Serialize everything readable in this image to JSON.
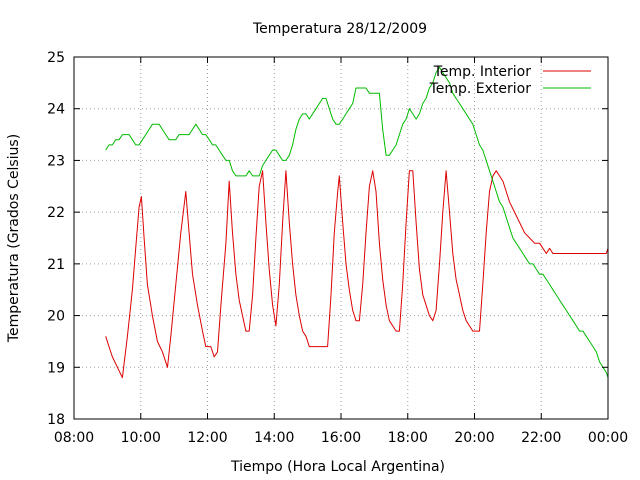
{
  "chart_data": {
    "type": "line",
    "title": "Temperatura 28/12/2009",
    "xlabel": "Tiempo (Hora Local Argentina)",
    "ylabel": "Temperatura (Grados Celsius)",
    "x_unit": "hours",
    "xlim": [
      8,
      24
    ],
    "ylim": [
      18,
      25
    ],
    "x_ticks": [
      {
        "value": 8,
        "label": "08:00"
      },
      {
        "value": 10,
        "label": "10:00"
      },
      {
        "value": 12,
        "label": "12:00"
      },
      {
        "value": 14,
        "label": "14:00"
      },
      {
        "value": 16,
        "label": "16:00"
      },
      {
        "value": 18,
        "label": "18:00"
      },
      {
        "value": 20,
        "label": "20:00"
      },
      {
        "value": 22,
        "label": "22:00"
      },
      {
        "value": 24,
        "label": "00:00"
      }
    ],
    "y_ticks": [
      {
        "value": 18,
        "label": "18"
      },
      {
        "value": 19,
        "label": "19"
      },
      {
        "value": 20,
        "label": "20"
      },
      {
        "value": 21,
        "label": "21"
      },
      {
        "value": 22,
        "label": "22"
      },
      {
        "value": 23,
        "label": "23"
      },
      {
        "value": 24,
        "label": "24"
      },
      {
        "value": 25,
        "label": "25"
      }
    ],
    "grid": true,
    "legend_position": "top-right",
    "series": [
      {
        "name": "Temp. Interior",
        "color": "#dd0000",
        "points": [
          [
            8.95,
            19.6
          ],
          [
            9.05,
            19.4
          ],
          [
            9.15,
            19.2
          ],
          [
            9.3,
            19.0
          ],
          [
            9.45,
            18.8
          ],
          [
            9.6,
            19.6
          ],
          [
            9.75,
            20.5
          ],
          [
            9.85,
            21.3
          ],
          [
            9.95,
            22.1
          ],
          [
            10.02,
            22.3
          ],
          [
            10.1,
            21.5
          ],
          [
            10.2,
            20.6
          ],
          [
            10.35,
            20.0
          ],
          [
            10.5,
            19.5
          ],
          [
            10.65,
            19.3
          ],
          [
            10.8,
            19.0
          ],
          [
            10.9,
            19.6
          ],
          [
            11.05,
            20.6
          ],
          [
            11.2,
            21.6
          ],
          [
            11.35,
            22.4
          ],
          [
            11.45,
            21.6
          ],
          [
            11.55,
            20.8
          ],
          [
            11.7,
            20.2
          ],
          [
            11.85,
            19.7
          ],
          [
            11.95,
            19.4
          ],
          [
            12.1,
            19.4
          ],
          [
            12.2,
            19.2
          ],
          [
            12.3,
            19.3
          ],
          [
            12.4,
            20.2
          ],
          [
            12.55,
            21.4
          ],
          [
            12.65,
            22.6
          ],
          [
            12.75,
            21.6
          ],
          [
            12.85,
            20.8
          ],
          [
            12.95,
            20.3
          ],
          [
            13.05,
            20.0
          ],
          [
            13.15,
            19.7
          ],
          [
            13.25,
            19.7
          ],
          [
            13.35,
            20.4
          ],
          [
            13.45,
            21.5
          ],
          [
            13.55,
            22.5
          ],
          [
            13.65,
            22.8
          ],
          [
            13.75,
            21.8
          ],
          [
            13.85,
            20.9
          ],
          [
            13.95,
            20.2
          ],
          [
            14.05,
            19.8
          ],
          [
            14.15,
            20.6
          ],
          [
            14.25,
            21.8
          ],
          [
            14.35,
            22.8
          ],
          [
            14.45,
            21.8
          ],
          [
            14.55,
            21.0
          ],
          [
            14.65,
            20.4
          ],
          [
            14.75,
            20.0
          ],
          [
            14.85,
            19.7
          ],
          [
            14.95,
            19.6
          ],
          [
            15.05,
            19.4
          ],
          [
            15.2,
            19.4
          ],
          [
            15.4,
            19.4
          ],
          [
            15.6,
            19.4
          ],
          [
            15.7,
            20.4
          ],
          [
            15.8,
            21.6
          ],
          [
            15.9,
            22.4
          ],
          [
            15.95,
            22.7
          ],
          [
            16.05,
            21.8
          ],
          [
            16.15,
            21.0
          ],
          [
            16.25,
            20.5
          ],
          [
            16.35,
            20.1
          ],
          [
            16.45,
            19.9
          ],
          [
            16.55,
            19.9
          ],
          [
            16.65,
            20.6
          ],
          [
            16.75,
            21.6
          ],
          [
            16.85,
            22.5
          ],
          [
            16.95,
            22.8
          ],
          [
            17.05,
            22.4
          ],
          [
            17.15,
            21.4
          ],
          [
            17.25,
            20.7
          ],
          [
            17.35,
            20.2
          ],
          [
            17.45,
            19.9
          ],
          [
            17.55,
            19.8
          ],
          [
            17.65,
            19.7
          ],
          [
            17.75,
            19.7
          ],
          [
            17.85,
            20.6
          ],
          [
            17.95,
            21.8
          ],
          [
            18.05,
            22.8
          ],
          [
            18.15,
            22.8
          ],
          [
            18.25,
            21.8
          ],
          [
            18.35,
            20.9
          ],
          [
            18.45,
            20.4
          ],
          [
            18.55,
            20.2
          ],
          [
            18.65,
            20.0
          ],
          [
            18.75,
            19.9
          ],
          [
            18.85,
            20.1
          ],
          [
            18.95,
            21.0
          ],
          [
            19.05,
            22.0
          ],
          [
            19.15,
            22.8
          ],
          [
            19.25,
            22.0
          ],
          [
            19.35,
            21.2
          ],
          [
            19.45,
            20.7
          ],
          [
            19.55,
            20.4
          ],
          [
            19.65,
            20.1
          ],
          [
            19.75,
            19.9
          ],
          [
            19.85,
            19.8
          ],
          [
            19.95,
            19.7
          ],
          [
            20.05,
            19.7
          ],
          [
            20.15,
            19.7
          ],
          [
            20.25,
            20.6
          ],
          [
            20.35,
            21.6
          ],
          [
            20.45,
            22.4
          ],
          [
            20.55,
            22.7
          ],
          [
            20.65,
            22.8
          ],
          [
            20.75,
            22.7
          ],
          [
            20.85,
            22.6
          ],
          [
            20.95,
            22.4
          ],
          [
            21.05,
            22.2
          ],
          [
            21.2,
            22.0
          ],
          [
            21.35,
            21.8
          ],
          [
            21.5,
            21.6
          ],
          [
            21.65,
            21.5
          ],
          [
            21.8,
            21.4
          ],
          [
            21.95,
            21.4
          ],
          [
            22.05,
            21.3
          ],
          [
            22.15,
            21.2
          ],
          [
            22.25,
            21.3
          ],
          [
            22.35,
            21.2
          ],
          [
            22.6,
            21.2
          ],
          [
            23.0,
            21.2
          ],
          [
            23.4,
            21.2
          ],
          [
            23.8,
            21.2
          ],
          [
            23.95,
            21.2
          ],
          [
            24.0,
            21.3
          ]
        ]
      },
      {
        "name": "Temp. Exterior",
        "color": "#00bb00",
        "points": [
          [
            8.95,
            23.2
          ],
          [
            9.05,
            23.3
          ],
          [
            9.15,
            23.3
          ],
          [
            9.25,
            23.4
          ],
          [
            9.35,
            23.4
          ],
          [
            9.45,
            23.5
          ],
          [
            9.55,
            23.5
          ],
          [
            9.65,
            23.5
          ],
          [
            9.75,
            23.4
          ],
          [
            9.85,
            23.3
          ],
          [
            9.95,
            23.3
          ],
          [
            10.05,
            23.4
          ],
          [
            10.15,
            23.5
          ],
          [
            10.25,
            23.6
          ],
          [
            10.35,
            23.7
          ],
          [
            10.45,
            23.7
          ],
          [
            10.55,
            23.7
          ],
          [
            10.65,
            23.6
          ],
          [
            10.75,
            23.5
          ],
          [
            10.85,
            23.4
          ],
          [
            10.95,
            23.4
          ],
          [
            11.05,
            23.4
          ],
          [
            11.15,
            23.5
          ],
          [
            11.25,
            23.5
          ],
          [
            11.35,
            23.5
          ],
          [
            11.45,
            23.5
          ],
          [
            11.55,
            23.6
          ],
          [
            11.65,
            23.7
          ],
          [
            11.75,
            23.6
          ],
          [
            11.85,
            23.5
          ],
          [
            11.95,
            23.5
          ],
          [
            12.05,
            23.4
          ],
          [
            12.15,
            23.3
          ],
          [
            12.25,
            23.3
          ],
          [
            12.35,
            23.2
          ],
          [
            12.45,
            23.1
          ],
          [
            12.55,
            23.0
          ],
          [
            12.65,
            23.0
          ],
          [
            12.75,
            22.8
          ],
          [
            12.85,
            22.7
          ],
          [
            12.95,
            22.7
          ],
          [
            13.05,
            22.7
          ],
          [
            13.15,
            22.7
          ],
          [
            13.25,
            22.8
          ],
          [
            13.35,
            22.7
          ],
          [
            13.45,
            22.7
          ],
          [
            13.55,
            22.7
          ],
          [
            13.65,
            22.9
          ],
          [
            13.75,
            23.0
          ],
          [
            13.85,
            23.1
          ],
          [
            13.95,
            23.2
          ],
          [
            14.05,
            23.2
          ],
          [
            14.15,
            23.1
          ],
          [
            14.25,
            23.0
          ],
          [
            14.35,
            23.0
          ],
          [
            14.45,
            23.1
          ],
          [
            14.55,
            23.3
          ],
          [
            14.65,
            23.6
          ],
          [
            14.75,
            23.8
          ],
          [
            14.85,
            23.9
          ],
          [
            14.95,
            23.9
          ],
          [
            15.05,
            23.8
          ],
          [
            15.15,
            23.9
          ],
          [
            15.25,
            24.0
          ],
          [
            15.35,
            24.1
          ],
          [
            15.45,
            24.2
          ],
          [
            15.55,
            24.2
          ],
          [
            15.65,
            24.0
          ],
          [
            15.75,
            23.8
          ],
          [
            15.85,
            23.7
          ],
          [
            15.95,
            23.7
          ],
          [
            16.05,
            23.8
          ],
          [
            16.15,
            23.9
          ],
          [
            16.25,
            24.0
          ],
          [
            16.35,
            24.1
          ],
          [
            16.45,
            24.4
          ],
          [
            16.55,
            24.4
          ],
          [
            16.65,
            24.4
          ],
          [
            16.75,
            24.4
          ],
          [
            16.85,
            24.3
          ],
          [
            16.95,
            24.3
          ],
          [
            17.05,
            24.3
          ],
          [
            17.15,
            24.3
          ],
          [
            17.25,
            23.6
          ],
          [
            17.35,
            23.1
          ],
          [
            17.45,
            23.1
          ],
          [
            17.55,
            23.2
          ],
          [
            17.65,
            23.3
          ],
          [
            17.75,
            23.5
          ],
          [
            17.85,
            23.7
          ],
          [
            17.95,
            23.8
          ],
          [
            18.05,
            24.0
          ],
          [
            18.15,
            23.9
          ],
          [
            18.25,
            23.8
          ],
          [
            18.35,
            23.9
          ],
          [
            18.45,
            24.1
          ],
          [
            18.55,
            24.2
          ],
          [
            18.65,
            24.4
          ],
          [
            18.75,
            24.5
          ],
          [
            18.85,
            24.7
          ],
          [
            18.95,
            24.8
          ],
          [
            19.05,
            24.7
          ],
          [
            19.15,
            24.6
          ],
          [
            19.25,
            24.5
          ],
          [
            19.35,
            24.3
          ],
          [
            19.45,
            24.2
          ],
          [
            19.55,
            24.1
          ],
          [
            19.65,
            24.0
          ],
          [
            19.75,
            23.9
          ],
          [
            19.85,
            23.8
          ],
          [
            19.95,
            23.7
          ],
          [
            20.05,
            23.5
          ],
          [
            20.15,
            23.3
          ],
          [
            20.25,
            23.2
          ],
          [
            20.35,
            23.0
          ],
          [
            20.45,
            22.8
          ],
          [
            20.55,
            22.6
          ],
          [
            20.65,
            22.4
          ],
          [
            20.75,
            22.2
          ],
          [
            20.85,
            22.1
          ],
          [
            20.95,
            21.9
          ],
          [
            21.05,
            21.7
          ],
          [
            21.15,
            21.5
          ],
          [
            21.25,
            21.4
          ],
          [
            21.35,
            21.3
          ],
          [
            21.45,
            21.2
          ],
          [
            21.55,
            21.1
          ],
          [
            21.65,
            21.0
          ],
          [
            21.75,
            21.0
          ],
          [
            21.85,
            20.9
          ],
          [
            21.95,
            20.8
          ],
          [
            22.05,
            20.8
          ],
          [
            22.15,
            20.7
          ],
          [
            22.25,
            20.6
          ],
          [
            22.35,
            20.5
          ],
          [
            22.45,
            20.4
          ],
          [
            22.55,
            20.3
          ],
          [
            22.65,
            20.2
          ],
          [
            22.75,
            20.1
          ],
          [
            22.85,
            20.0
          ],
          [
            22.95,
            19.9
          ],
          [
            23.05,
            19.8
          ],
          [
            23.15,
            19.7
          ],
          [
            23.25,
            19.7
          ],
          [
            23.35,
            19.6
          ],
          [
            23.45,
            19.5
          ],
          [
            23.55,
            19.4
          ],
          [
            23.65,
            19.3
          ],
          [
            23.75,
            19.1
          ],
          [
            23.85,
            19.0
          ],
          [
            23.95,
            18.9
          ],
          [
            24.0,
            18.8
          ]
        ]
      }
    ]
  }
}
